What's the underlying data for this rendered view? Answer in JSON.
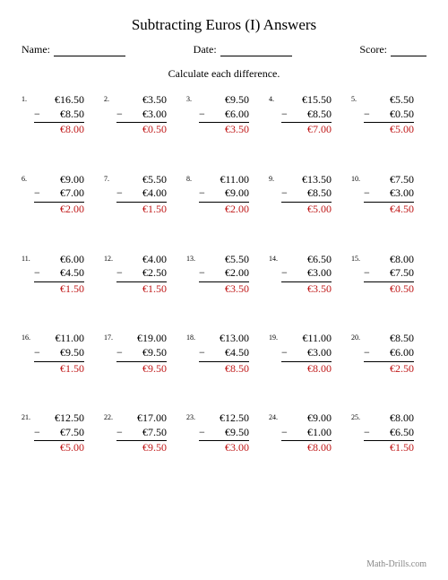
{
  "title": "Subtracting Euros (I) Answers",
  "header": {
    "name_label": "Name:",
    "date_label": "Date:",
    "score_label": "Score:"
  },
  "instruction": "Calculate each difference.",
  "currency_symbol": "€",
  "operator": "−",
  "answer_color": "#c01818",
  "text_color": "#000000",
  "footer": "Math-Drills.com",
  "footer_color": "#888888",
  "problems": [
    {
      "n": "1.",
      "top": "€16.50",
      "bot": "€8.50",
      "ans": "€8.00"
    },
    {
      "n": "2.",
      "top": "€3.50",
      "bot": "€3.00",
      "ans": "€0.50"
    },
    {
      "n": "3.",
      "top": "€9.50",
      "bot": "€6.00",
      "ans": "€3.50"
    },
    {
      "n": "4.",
      "top": "€15.50",
      "bot": "€8.50",
      "ans": "€7.00"
    },
    {
      "n": "5.",
      "top": "€5.50",
      "bot": "€0.50",
      "ans": "€5.00"
    },
    {
      "n": "6.",
      "top": "€9.00",
      "bot": "€7.00",
      "ans": "€2.00"
    },
    {
      "n": "7.",
      "top": "€5.50",
      "bot": "€4.00",
      "ans": "€1.50"
    },
    {
      "n": "8.",
      "top": "€11.00",
      "bot": "€9.00",
      "ans": "€2.00"
    },
    {
      "n": "9.",
      "top": "€13.50",
      "bot": "€8.50",
      "ans": "€5.00"
    },
    {
      "n": "10.",
      "top": "€7.50",
      "bot": "€3.00",
      "ans": "€4.50"
    },
    {
      "n": "11.",
      "top": "€6.00",
      "bot": "€4.50",
      "ans": "€1.50"
    },
    {
      "n": "12.",
      "top": "€4.00",
      "bot": "€2.50",
      "ans": "€1.50"
    },
    {
      "n": "13.",
      "top": "€5.50",
      "bot": "€2.00",
      "ans": "€3.50"
    },
    {
      "n": "14.",
      "top": "€6.50",
      "bot": "€3.00",
      "ans": "€3.50"
    },
    {
      "n": "15.",
      "top": "€8.00",
      "bot": "€7.50",
      "ans": "€0.50"
    },
    {
      "n": "16.",
      "top": "€11.00",
      "bot": "€9.50",
      "ans": "€1.50"
    },
    {
      "n": "17.",
      "top": "€19.00",
      "bot": "€9.50",
      "ans": "€9.50"
    },
    {
      "n": "18.",
      "top": "€13.00",
      "bot": "€4.50",
      "ans": "€8.50"
    },
    {
      "n": "19.",
      "top": "€11.00",
      "bot": "€3.00",
      "ans": "€8.00"
    },
    {
      "n": "20.",
      "top": "€8.50",
      "bot": "€6.00",
      "ans": "€2.50"
    },
    {
      "n": "21.",
      "top": "€12.50",
      "bot": "€7.50",
      "ans": "€5.00"
    },
    {
      "n": "22.",
      "top": "€17.00",
      "bot": "€7.50",
      "ans": "€9.50"
    },
    {
      "n": "23.",
      "top": "€12.50",
      "bot": "€9.50",
      "ans": "€3.00"
    },
    {
      "n": "24.",
      "top": "€9.00",
      "bot": "€1.00",
      "ans": "€8.00"
    },
    {
      "n": "25.",
      "top": "€8.00",
      "bot": "€6.50",
      "ans": "€1.50"
    }
  ]
}
